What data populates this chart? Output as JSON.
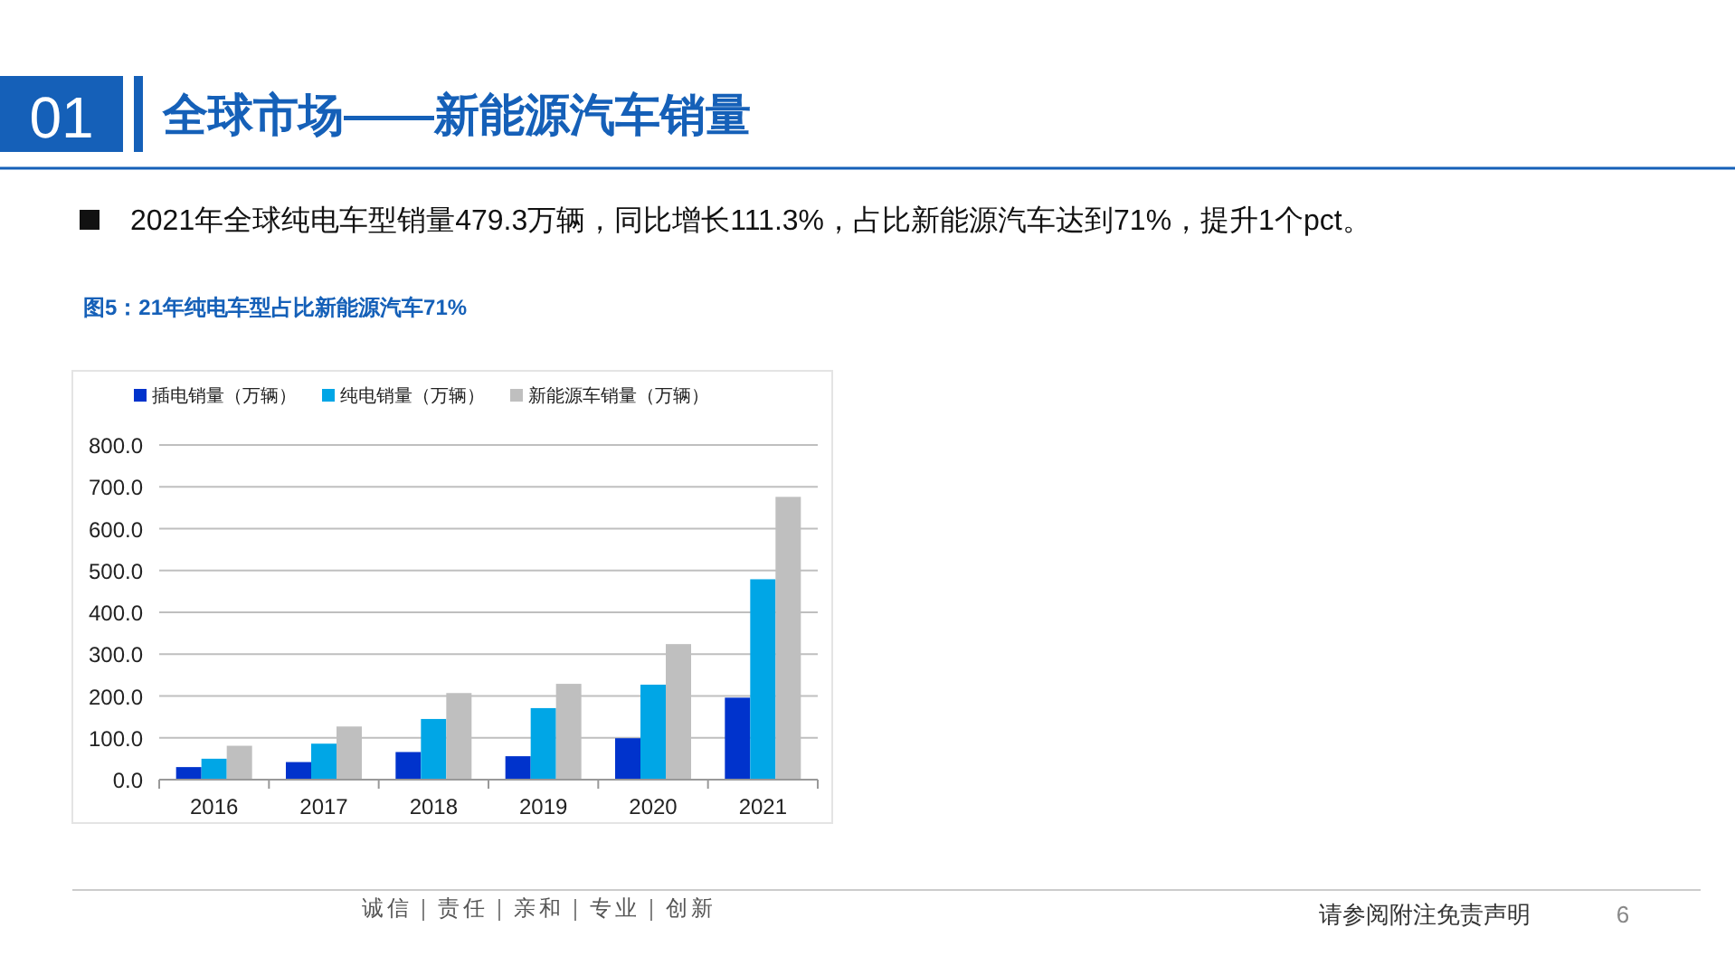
{
  "chart_data": {
    "type": "bar",
    "title": "全球市场——新能源汽车销量",
    "subtitle": "2021年全球纯电车型销量479.3万辆，同比增长111.3%，占比新能源汽车达到71%，提升1个pct。",
    "annotations": [
      "01",
      "图5：21年纯电车型占比新能源汽车71%",
      "诚信｜责任｜亲和｜专业｜创新",
      "请参阅附注免责声明",
      "6"
    ],
    "categories": [
      "2016",
      "2017",
      "2018",
      "2019",
      "2020",
      "2021"
    ],
    "series": [
      {
        "name": "插电销量（万辆）",
        "color": "#0033cc",
        "values": [
          30,
          42,
          66,
          56,
          99,
          196
        ]
      },
      {
        "name": "纯电销量（万辆）",
        "color": "#00a6e6",
        "values": [
          50,
          86,
          145,
          171,
          227,
          479
        ]
      },
      {
        "name": "新能源车销量（万辆）",
        "color": "#bfbfbf",
        "values": [
          81,
          127,
          207,
          229,
          324,
          676
        ]
      }
    ],
    "ylim": [
      0,
      800
    ],
    "yticks": [
      {
        "value": 0,
        "label": "0.0"
      },
      {
        "value": 100,
        "label": "100.0"
      },
      {
        "value": 200,
        "label": "200.0"
      },
      {
        "value": 300,
        "label": "300.0"
      },
      {
        "value": 400,
        "label": "400.0"
      },
      {
        "value": 500,
        "label": "500.0"
      },
      {
        "value": 600,
        "label": "600.0"
      },
      {
        "value": 700,
        "label": "700.0"
      },
      {
        "value": 800,
        "label": "800.0"
      }
    ],
    "grid": "y",
    "legend": "top"
  }
}
